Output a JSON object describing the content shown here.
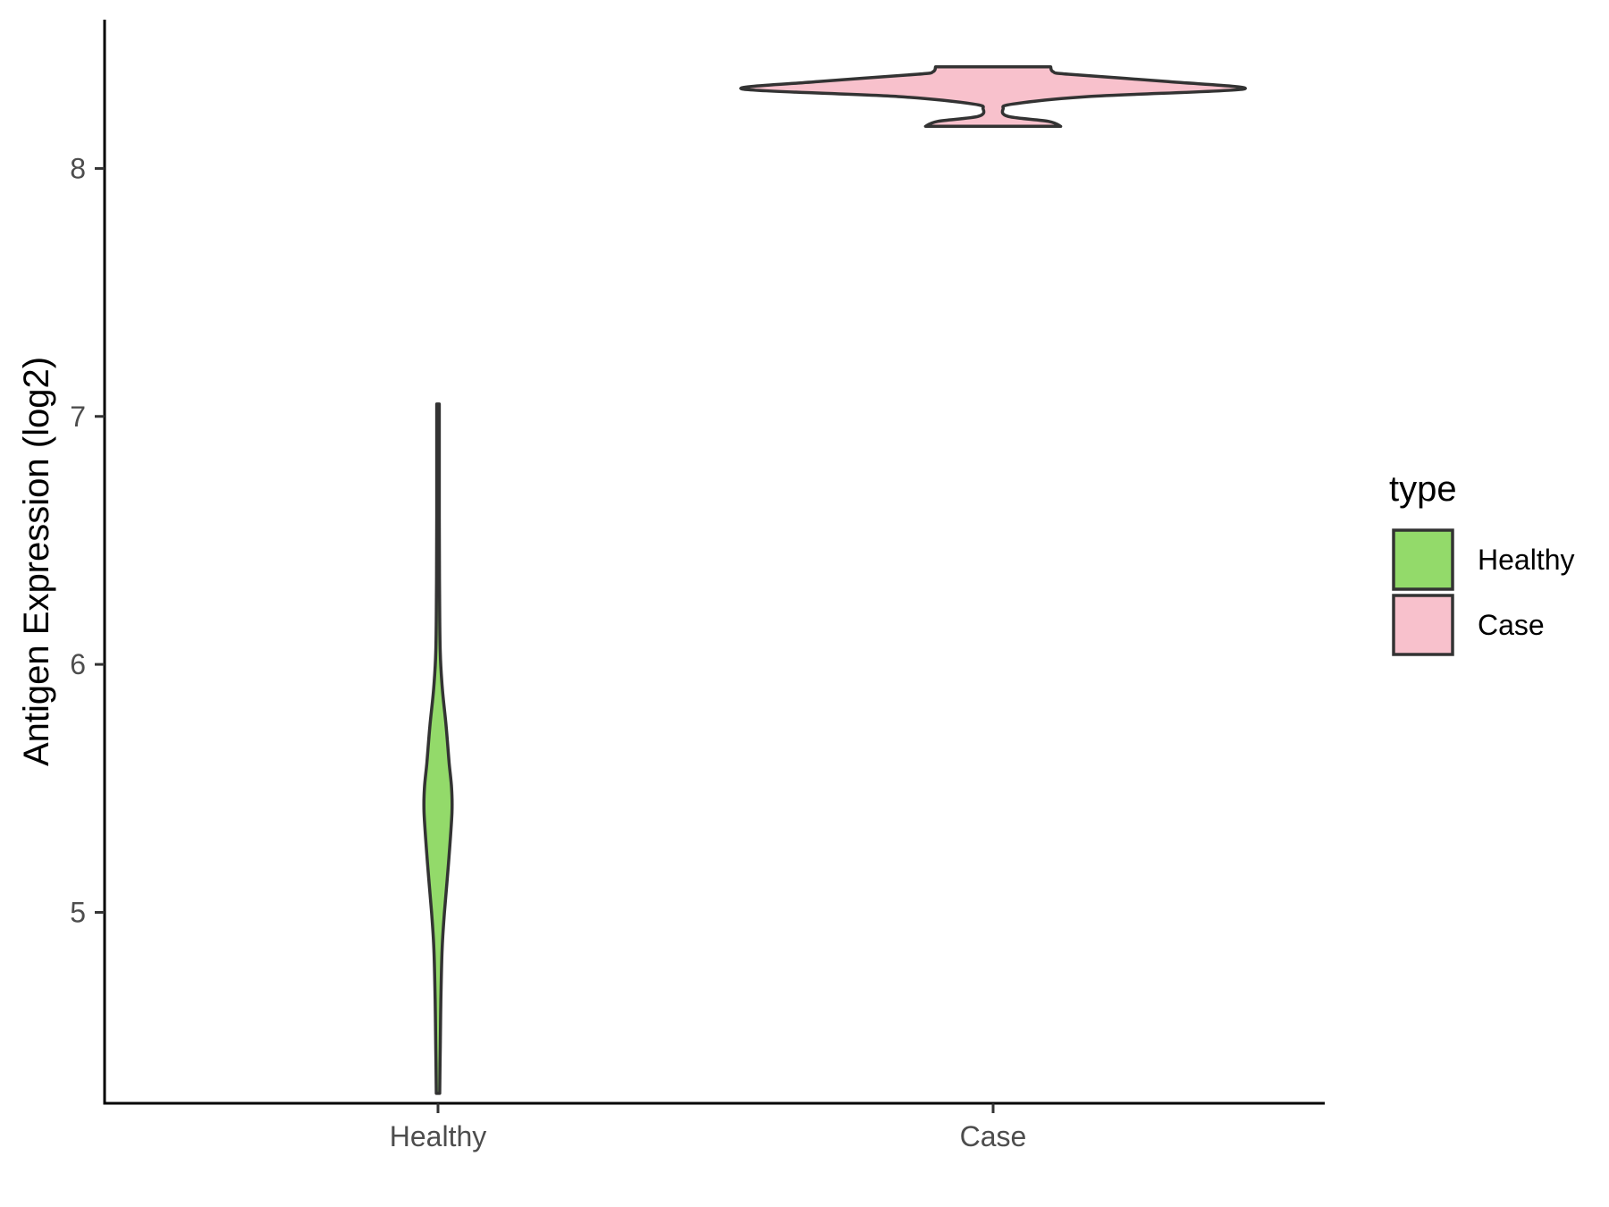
{
  "chart_data": {
    "type": "violin",
    "title": "",
    "xlabel": "",
    "ylabel": "Antigen Expression (log2)",
    "categories": [
      "Healthy",
      "Case"
    ],
    "y_ticks": [
      5,
      6,
      7,
      8
    ],
    "ylim": [
      4.23,
      8.6
    ],
    "grid": false,
    "legend": {
      "title": "type",
      "placement": "right",
      "entries": [
        "Healthy",
        "Case"
      ]
    },
    "series": [
      {
        "category": "Healthy",
        "color": "#93DA6A",
        "min": 4.27,
        "max": 7.05,
        "density": [
          [
            4.27,
            0.1
          ],
          [
            4.45,
            0.13
          ],
          [
            4.65,
            0.17
          ],
          [
            4.85,
            0.24
          ],
          [
            5.0,
            0.38
          ],
          [
            5.2,
            0.62
          ],
          [
            5.4,
            0.82
          ],
          [
            5.5,
            0.8
          ],
          [
            5.6,
            0.66
          ],
          [
            5.75,
            0.48
          ],
          [
            5.9,
            0.26
          ],
          [
            6.05,
            0.13
          ],
          [
            6.3,
            0.09
          ],
          [
            6.6,
            0.075
          ],
          [
            7.05,
            0.075
          ]
        ]
      },
      {
        "category": "Case",
        "color": "#F8C1CC",
        "min": 8.17,
        "max": 8.41,
        "density": [
          [
            8.17,
            0.27
          ],
          [
            8.19,
            0.22
          ],
          [
            8.21,
            0.06
          ],
          [
            8.24,
            0.04
          ],
          [
            8.26,
            0.08
          ],
          [
            8.29,
            0.38
          ],
          [
            8.32,
            1.0
          ],
          [
            8.35,
            0.7
          ],
          [
            8.38,
            0.3
          ],
          [
            8.39,
            0.24
          ],
          [
            8.41,
            0.23
          ]
        ]
      }
    ]
  }
}
